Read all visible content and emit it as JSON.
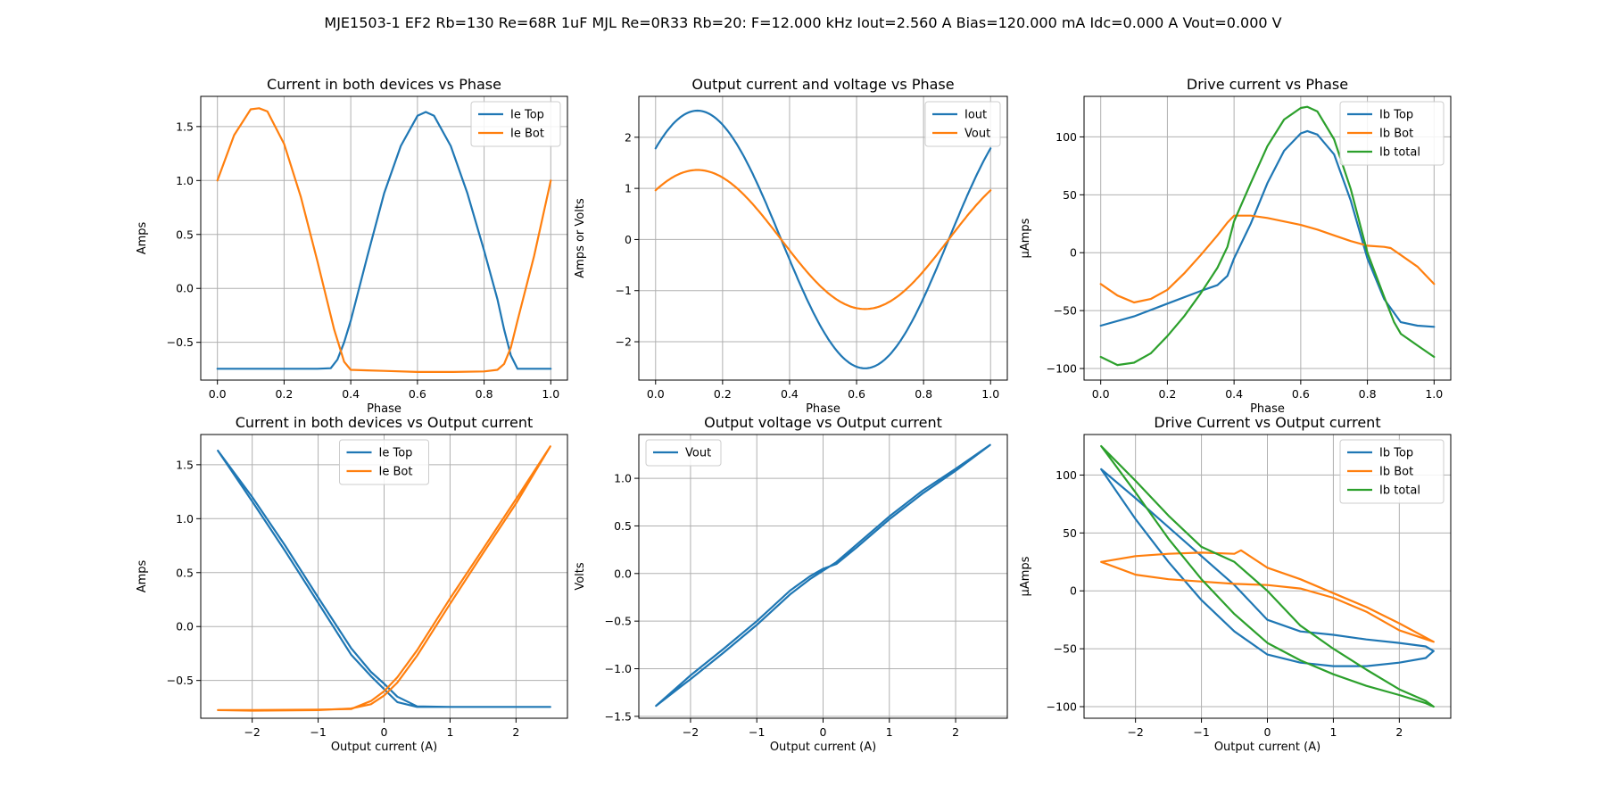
{
  "suptitle": "MJE1503-1 EF2 Rb=130 Re=68R 1uF MJL Re=0R33 Rb=20: F=12.000 kHz Iout=2.560 A Bias=120.000 mA Idc=0.000 A Vout=0.000 V",
  "colors": {
    "blue": "#1f77b4",
    "orange": "#ff7f0e",
    "green": "#2ca02c"
  },
  "chart_data": [
    {
      "type": "line",
      "title": "Current in both devices vs Phase",
      "xlabel": "Phase",
      "ylabel": "Amps",
      "xlim": [
        -0.05,
        1.05
      ],
      "ylim": [
        -0.85,
        1.78
      ],
      "xticks": [
        0.0,
        0.2,
        0.4,
        0.6,
        0.8,
        1.0
      ],
      "xtick_labels": [
        "0.0",
        "0.2",
        "0.4",
        "0.6",
        "0.8",
        "1.0"
      ],
      "yticks": [
        -0.5,
        0.0,
        0.5,
        1.0,
        1.5
      ],
      "ytick_labels": [
        "−0.5",
        "0.0",
        "0.5",
        "1.0",
        "1.5"
      ],
      "grid": true,
      "legend": "upper right",
      "series": [
        {
          "name": "Ie Top",
          "color": "#1f77b4",
          "x": [
            0,
            0.1,
            0.2,
            0.3,
            0.34,
            0.36,
            0.38,
            0.4,
            0.45,
            0.5,
            0.55,
            0.6,
            0.625,
            0.65,
            0.7,
            0.75,
            0.8,
            0.84,
            0.86,
            0.88,
            0.9,
            0.95,
            1.0
          ],
          "y": [
            -0.745,
            -0.745,
            -0.745,
            -0.745,
            -0.74,
            -0.66,
            -0.5,
            -0.3,
            0.3,
            0.88,
            1.32,
            1.6,
            1.635,
            1.6,
            1.32,
            0.88,
            0.35,
            -0.1,
            -0.38,
            -0.62,
            -0.745,
            -0.745,
            -0.745
          ]
        },
        {
          "name": "Ie Bot",
          "color": "#ff7f0e",
          "x": [
            0,
            0.05,
            0.1,
            0.125,
            0.15,
            0.2,
            0.25,
            0.3,
            0.35,
            0.38,
            0.4,
            0.45,
            0.5,
            0.6,
            0.7,
            0.8,
            0.84,
            0.86,
            0.88,
            0.9,
            0.95,
            1.0
          ],
          "y": [
            1.0,
            1.42,
            1.66,
            1.67,
            1.64,
            1.34,
            0.85,
            0.25,
            -0.38,
            -0.68,
            -0.755,
            -0.76,
            -0.765,
            -0.775,
            -0.775,
            -0.77,
            -0.755,
            -0.7,
            -0.55,
            -0.3,
            0.3,
            1.0
          ]
        }
      ]
    },
    {
      "type": "line",
      "title": "Output current and voltage vs Phase",
      "xlabel": "Phase",
      "ylabel": "Amps or Volts",
      "xlim": [
        -0.05,
        1.05
      ],
      "ylim": [
        -2.75,
        2.8
      ],
      "xticks": [
        0.0,
        0.2,
        0.4,
        0.6,
        0.8,
        1.0
      ],
      "xtick_labels": [
        "0.0",
        "0.2",
        "0.4",
        "0.6",
        "0.8",
        "1.0"
      ],
      "yticks": [
        -2,
        -1,
        0,
        1,
        2
      ],
      "ytick_labels": [
        "−2",
        "−1",
        "0",
        "1",
        "2"
      ],
      "grid": true,
      "legend": "upper right",
      "series": [
        {
          "name": "Iout",
          "color": "#1f77b4",
          "function": "2.52*sin(2*pi*(x+0.125))"
        },
        {
          "name": "Vout",
          "color": "#ff7f0e",
          "function": "1.36*sin(2*pi*(x+0.125))"
        }
      ]
    },
    {
      "type": "line",
      "title": "Drive current vs Phase",
      "xlabel": "Phase",
      "ylabel": "µAmps",
      "xlim": [
        -0.05,
        1.05
      ],
      "ylim": [
        -110,
        135
      ],
      "xticks": [
        0.0,
        0.2,
        0.4,
        0.6,
        0.8,
        1.0
      ],
      "xtick_labels": [
        "0.0",
        "0.2",
        "0.4",
        "0.6",
        "0.8",
        "1.0"
      ],
      "yticks": [
        -100,
        -50,
        0,
        50,
        100
      ],
      "ytick_labels": [
        "−100",
        "−50",
        "0",
        "50",
        "100"
      ],
      "grid": true,
      "legend": "upper right",
      "series": [
        {
          "name": "Ib Top",
          "color": "#1f77b4",
          "x": [
            0,
            0.1,
            0.2,
            0.3,
            0.35,
            0.38,
            0.4,
            0.45,
            0.5,
            0.55,
            0.6,
            0.62,
            0.65,
            0.7,
            0.75,
            0.8,
            0.85,
            0.9,
            0.95,
            1.0
          ],
          "y": [
            -63,
            -55,
            -44,
            -33,
            -28,
            -20,
            -5,
            25,
            60,
            88,
            103,
            105,
            102,
            85,
            45,
            -5,
            -40,
            -60,
            -63,
            -64
          ]
        },
        {
          "name": "Ib Bot",
          "color": "#ff7f0e",
          "x": [
            0,
            0.05,
            0.1,
            0.15,
            0.2,
            0.25,
            0.3,
            0.35,
            0.38,
            0.4,
            0.42,
            0.45,
            0.5,
            0.55,
            0.6,
            0.65,
            0.7,
            0.75,
            0.8,
            0.85,
            0.87,
            0.9,
            0.95,
            1.0
          ],
          "y": [
            -27,
            -37,
            -43,
            -40,
            -32,
            -18,
            -2,
            15,
            26,
            32,
            32,
            32,
            30,
            27,
            24,
            20,
            15,
            10,
            6,
            5,
            4,
            -2,
            -12,
            -27
          ]
        },
        {
          "name": "Ib total",
          "color": "#2ca02c",
          "x": [
            0,
            0.05,
            0.1,
            0.15,
            0.2,
            0.25,
            0.3,
            0.35,
            0.38,
            0.4,
            0.45,
            0.5,
            0.55,
            0.6,
            0.62,
            0.65,
            0.7,
            0.75,
            0.8,
            0.85,
            0.88,
            0.9,
            0.95,
            1.0
          ],
          "y": [
            -90,
            -97,
            -95,
            -87,
            -72,
            -55,
            -35,
            -13,
            5,
            27,
            60,
            92,
            115,
            125,
            126,
            122,
            98,
            55,
            0,
            -38,
            -60,
            -70,
            -80,
            -90
          ]
        }
      ]
    },
    {
      "type": "line",
      "title": "Current in both devices vs Output current",
      "xlabel": "Output current (A)",
      "ylabel": "Amps",
      "xlim": [
        -2.78,
        2.78
      ],
      "ylim": [
        -0.85,
        1.78
      ],
      "xticks": [
        -2,
        -1,
        0,
        1,
        2
      ],
      "xtick_labels": [
        "−2",
        "−1",
        "0",
        "1",
        "2"
      ],
      "yticks": [
        -0.5,
        0.0,
        0.5,
        1.0,
        1.5
      ],
      "ytick_labels": [
        "−0.5",
        "0.0",
        "0.5",
        "1.0",
        "1.5"
      ],
      "grid": true,
      "legend": "upper center",
      "series": [
        {
          "name": "Ie Top",
          "color": "#1f77b4",
          "x": [
            -2.52,
            -2.0,
            -1.5,
            -1.0,
            -0.5,
            -0.2,
            0.0,
            0.2,
            0.5,
            1.0,
            1.5,
            2.0,
            2.52,
            2.0,
            1.0,
            0.5,
            0.2,
            0.0,
            -0.2,
            -0.5,
            -1.0,
            -1.5,
            -2.0,
            -2.52
          ],
          "y": [
            1.63,
            1.16,
            0.7,
            0.22,
            -0.26,
            -0.46,
            -0.58,
            -0.7,
            -0.745,
            -0.745,
            -0.745,
            -0.745,
            -0.745,
            -0.745,
            -0.745,
            -0.74,
            -0.65,
            -0.53,
            -0.42,
            -0.2,
            0.27,
            0.75,
            1.2,
            1.63
          ]
        },
        {
          "name": "Ie Bot",
          "color": "#ff7f0e",
          "x": [
            -2.52,
            -2.0,
            -1.0,
            -0.5,
            -0.2,
            0.0,
            0.2,
            0.5,
            1.0,
            1.5,
            2.0,
            2.52,
            2.0,
            1.5,
            1.0,
            0.5,
            0.2,
            0.0,
            -0.2,
            -0.5,
            -1.0,
            -2.0,
            -2.52
          ],
          "y": [
            -0.775,
            -0.775,
            -0.77,
            -0.765,
            -0.69,
            -0.6,
            -0.47,
            -0.22,
            0.26,
            0.72,
            1.18,
            1.67,
            1.14,
            0.68,
            0.21,
            -0.27,
            -0.52,
            -0.64,
            -0.72,
            -0.76,
            -0.775,
            -0.78,
            -0.775
          ]
        }
      ]
    },
    {
      "type": "line",
      "title": "Output voltage vs Output current",
      "xlabel": "Output current (A)",
      "ylabel": "Volts",
      "xlim": [
        -2.78,
        2.78
      ],
      "ylim": [
        -1.52,
        1.46
      ],
      "xticks": [
        -2,
        -1,
        0,
        1,
        2
      ],
      "xtick_labels": [
        "−2",
        "−1",
        "0",
        "1",
        "2"
      ],
      "yticks": [
        -1.5,
        -1.0,
        -0.5,
        0.0,
        0.5,
        1.0
      ],
      "ytick_labels": [
        "−1.5",
        "−1.0",
        "−0.5",
        "0.0",
        "0.5",
        "1.0"
      ],
      "grid": true,
      "legend": "upper left",
      "series": [
        {
          "name": "Vout",
          "color": "#1f77b4",
          "x": [
            -2.52,
            -2.0,
            -1.5,
            -1.0,
            -0.5,
            -0.2,
            0.0,
            0.2,
            0.5,
            1.0,
            1.5,
            2.0,
            2.52,
            2.0,
            1.5,
            1.0,
            0.5,
            0.2,
            0.0,
            -0.2,
            -0.5,
            -1.0,
            -1.5,
            -2.0,
            -2.52
          ],
          "y": [
            -1.39,
            -1.11,
            -0.83,
            -0.54,
            -0.22,
            -0.06,
            0.03,
            0.12,
            0.3,
            0.6,
            0.87,
            1.1,
            1.35,
            1.08,
            0.84,
            0.57,
            0.27,
            0.1,
            0.05,
            -0.03,
            -0.18,
            -0.5,
            -0.79,
            -1.07,
            -1.39
          ]
        }
      ]
    },
    {
      "type": "line",
      "title": "Drive Current vs Output current",
      "xlabel": "Output current (A)",
      "ylabel": "µAmps",
      "xlim": [
        -2.78,
        2.78
      ],
      "ylim": [
        -110,
        135
      ],
      "xticks": [
        -2,
        -1,
        0,
        1,
        2
      ],
      "xtick_labels": [
        "−2",
        "−1",
        "0",
        "1",
        "2"
      ],
      "yticks": [
        -100,
        -50,
        0,
        50,
        100
      ],
      "ytick_labels": [
        "−100",
        "−50",
        "0",
        "50",
        "100"
      ],
      "grid": true,
      "legend": "upper right",
      "series": [
        {
          "name": "Ib Top",
          "color": "#1f77b4",
          "x": [
            -2.52,
            -2.0,
            -1.5,
            -1.0,
            -0.5,
            0.0,
            0.5,
            1.0,
            1.5,
            2.0,
            2.4,
            2.52,
            2.4,
            2.0,
            1.5,
            1.0,
            0.5,
            0.0,
            -0.5,
            -1.0,
            -1.5,
            -2.0,
            -2.52
          ],
          "y": [
            105,
            80,
            55,
            30,
            5,
            -25,
            -35,
            -38,
            -42,
            -45,
            -48,
            -52,
            -58,
            -62,
            -65,
            -65,
            -62,
            -55,
            -35,
            -8,
            25,
            62,
            105
          ]
        },
        {
          "name": "Ib Bot",
          "color": "#ff7f0e",
          "x": [
            -2.52,
            -2.0,
            -1.5,
            -1.0,
            -0.5,
            -0.4,
            0.0,
            0.5,
            1.0,
            1.5,
            2.0,
            2.52,
            2.0,
            1.5,
            1.0,
            0.5,
            0.0,
            -0.5,
            -1.0,
            -1.5,
            -2.0,
            -2.52
          ],
          "y": [
            25,
            30,
            32,
            33,
            32,
            35,
            20,
            10,
            -2,
            -14,
            -28,
            -44,
            -34,
            -18,
            -6,
            2,
            5,
            6,
            8,
            10,
            14,
            25
          ]
        },
        {
          "name": "Ib total",
          "color": "#2ca02c",
          "x": [
            -2.52,
            -2.0,
            -1.5,
            -1.0,
            -0.5,
            0.0,
            0.5,
            1.0,
            1.5,
            2.0,
            2.4,
            2.52,
            2.4,
            2.0,
            1.5,
            1.0,
            0.5,
            0.0,
            -0.5,
            -1.0,
            -1.5,
            -2.0,
            -2.52
          ],
          "y": [
            125,
            95,
            65,
            38,
            25,
            0,
            -30,
            -50,
            -68,
            -85,
            -95,
            -100,
            -97,
            -90,
            -82,
            -72,
            -60,
            -45,
            -20,
            10,
            45,
            85,
            125
          ]
        }
      ]
    }
  ]
}
